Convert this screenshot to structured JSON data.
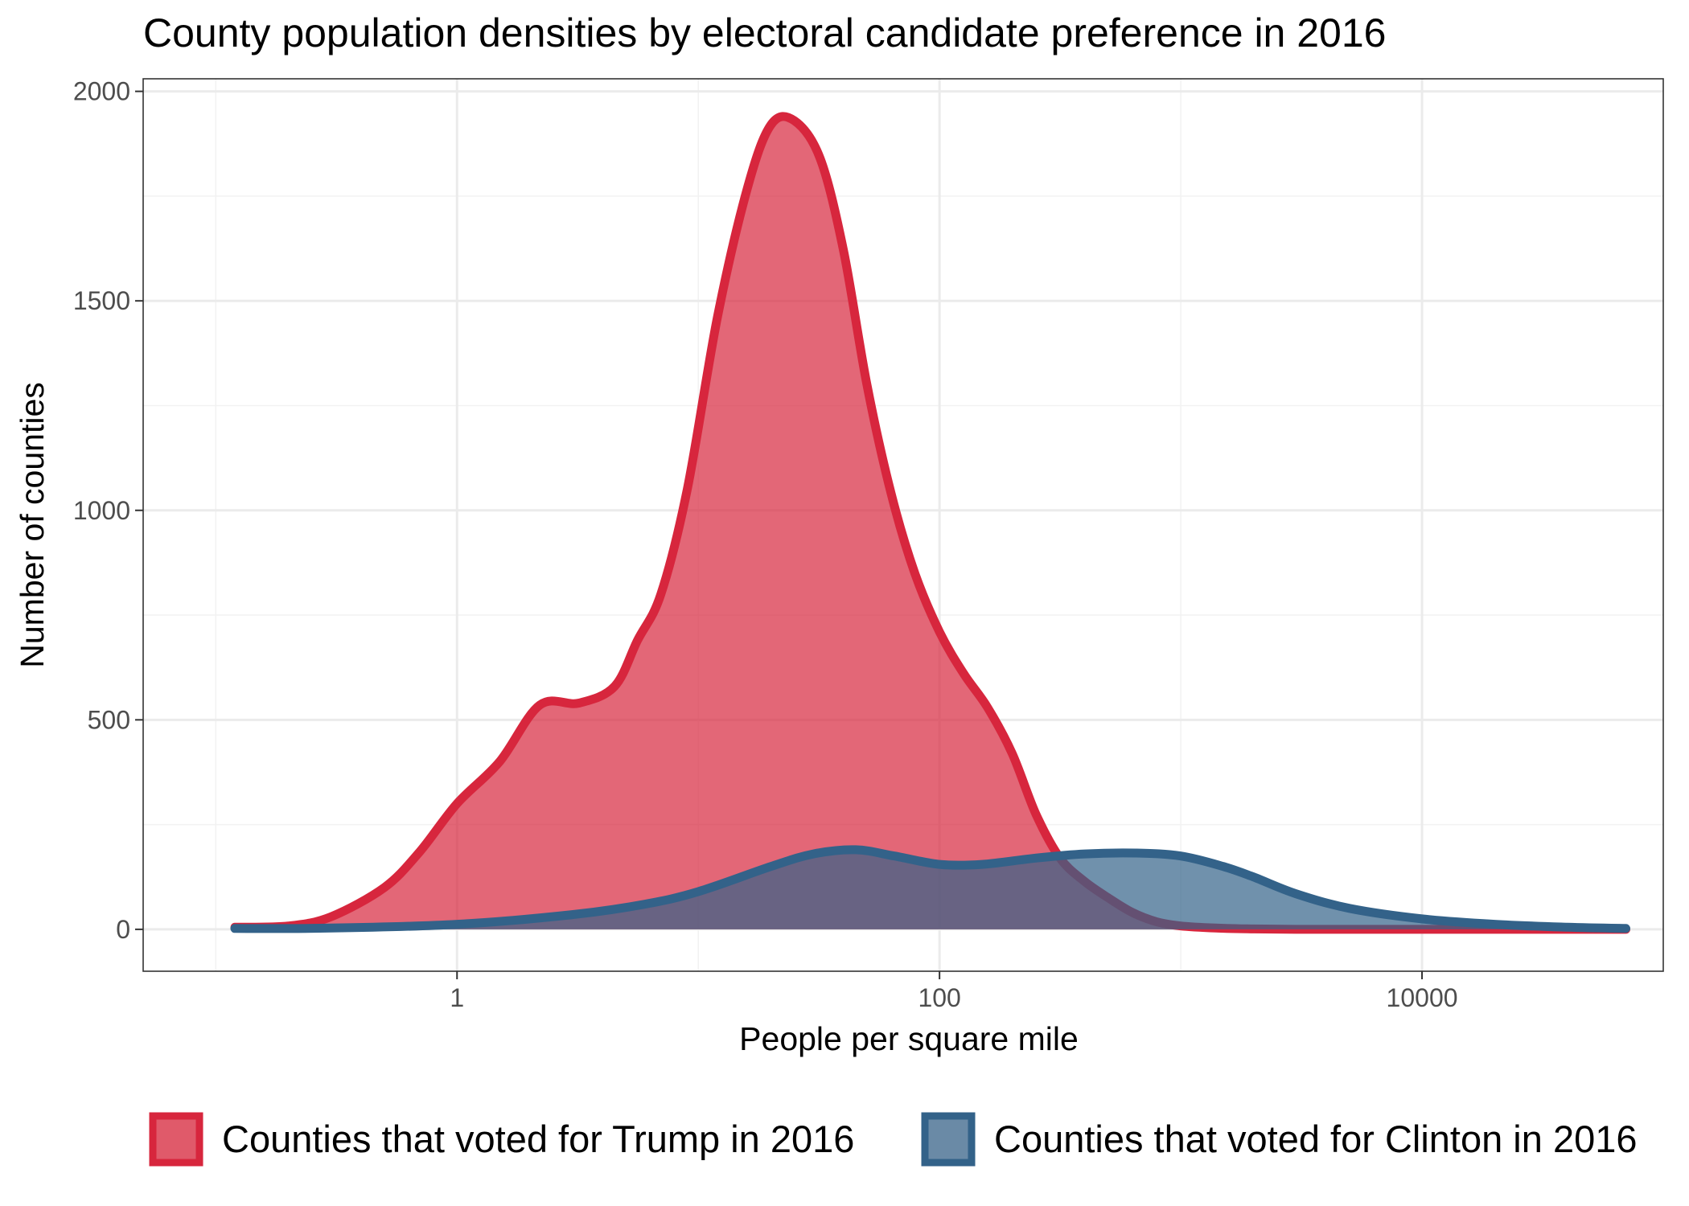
{
  "chart_data": {
    "type": "area",
    "title": "County population densities by electoral candidate preference in 2016",
    "xlabel": "People per square mile",
    "ylabel": "Number of counties",
    "x_scale": "log10",
    "xlim": [
      0.05,
      100000
    ],
    "ylim": [
      -100,
      2030
    ],
    "x_ticks": [
      1,
      100,
      10000
    ],
    "x_tick_labels": [
      "1",
      "100",
      "10000"
    ],
    "y_ticks": [
      0,
      500,
      1000,
      1500,
      2000
    ],
    "y_tick_labels": [
      "0",
      "500",
      "1000",
      "1500",
      "2000"
    ],
    "grid": true,
    "legend": "bottom",
    "series": [
      {
        "name": "Counties that voted for Trump in 2016",
        "color": "#d7263d",
        "fill": "#e05a6a",
        "x": [
          0.12,
          0.2,
          0.3,
          0.5,
          0.7,
          1.0,
          1.5,
          2.2,
          3.2,
          4.5,
          5.6,
          7.0,
          9.0,
          12,
          16,
          20,
          25,
          32,
          40,
          50,
          63,
          79,
          100,
          126,
          158,
          200,
          251,
          316,
          398,
          501,
          631,
          794,
          1000,
          1400,
          2000,
          3000,
          5000,
          10000,
          20000,
          50000,
          70000
        ],
        "y": [
          5,
          8,
          30,
          100,
          185,
          300,
          400,
          535,
          540,
          580,
          690,
          800,
          1050,
          1460,
          1770,
          1920,
          1930,
          1840,
          1620,
          1300,
          1040,
          850,
          710,
          610,
          530,
          420,
          275,
          170,
          115,
          75,
          40,
          18,
          8,
          3,
          1,
          0,
          0,
          0,
          0,
          0,
          0
        ]
      },
      {
        "name": "Counties that voted for Clinton in 2016",
        "color": "#336289",
        "fill": "#6a8aa6",
        "x": [
          0.12,
          0.3,
          1.0,
          3.0,
          6.0,
          10,
          20,
          30,
          45,
          65,
          100,
          150,
          250,
          400,
          650,
          1000,
          1500,
          2000,
          3000,
          5000,
          10000,
          20000,
          40000,
          70000
        ],
        "y": [
          2,
          3,
          12,
          35,
          60,
          90,
          150,
          180,
          190,
          175,
          155,
          155,
          170,
          180,
          182,
          175,
          150,
          125,
          85,
          50,
          25,
          12,
          5,
          2
        ]
      }
    ]
  }
}
